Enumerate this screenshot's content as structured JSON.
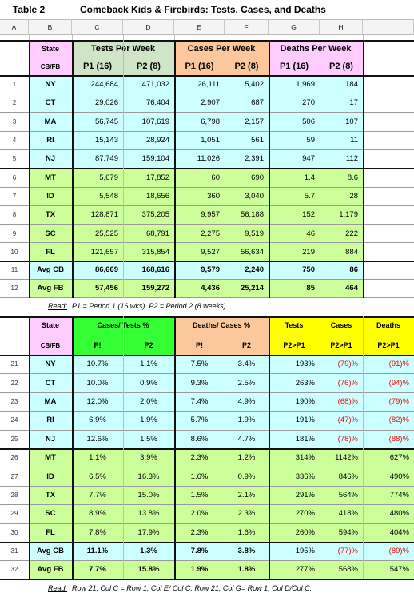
{
  "table_label": "Table 2",
  "table_title": "Comeback Kids & Firebirds: Tests, Cases, and Deaths",
  "column_letters": [
    "A",
    "B",
    "C",
    "D",
    "E",
    "F",
    "G",
    "H",
    "I"
  ],
  "upper": {
    "header": {
      "state": "State",
      "cbfb": "CB/FB",
      "groups": [
        "Tests Per Week",
        "Cases Per Week",
        "Deaths Per Week"
      ],
      "subs": [
        "P1  (16)",
        "P2  (8)",
        "P1  (16)",
        "P2  (8)",
        "P1  (16)",
        "P2  (8)"
      ]
    },
    "rows": [
      {
        "num": "1",
        "state": "NY",
        "v": [
          "244,684",
          "471,032",
          "26,111",
          "5,402",
          "1,969",
          "184"
        ]
      },
      {
        "num": "2",
        "state": "CT",
        "v": [
          "29,026",
          "76,404",
          "2,907",
          "687",
          "270",
          "17"
        ]
      },
      {
        "num": "3",
        "state": "MA",
        "v": [
          "56,745",
          "107,619",
          "6,798",
          "2,157",
          "506",
          "107"
        ]
      },
      {
        "num": "4",
        "state": "RI",
        "v": [
          "15,143",
          "28,924",
          "1,051",
          "561",
          "59",
          "11"
        ]
      },
      {
        "num": "5",
        "state": "NJ",
        "v": [
          "87,749",
          "159,104",
          "11,026",
          "2,391",
          "947",
          "112"
        ]
      },
      {
        "num": "6",
        "state": "MT",
        "v": [
          "5,679",
          "17,852",
          "60",
          "690",
          "1.4",
          "8.6"
        ]
      },
      {
        "num": "7",
        "state": "ID",
        "v": [
          "5,548",
          "18,656",
          "360",
          "3,040",
          "5.7",
          "28"
        ]
      },
      {
        "num": "8",
        "state": "TX",
        "v": [
          "128,871",
          "375,205",
          "9,957",
          "56,188",
          "152",
          "1,179"
        ]
      },
      {
        "num": "9",
        "state": "SC",
        "v": [
          "25,525",
          "68,791",
          "2,275",
          "9,519",
          "46",
          "222"
        ]
      },
      {
        "num": "10",
        "state": "FL",
        "v": [
          "121,657",
          "315,854",
          "9,527",
          "56,634",
          "219",
          "884"
        ]
      }
    ],
    "avg": [
      {
        "num": "11",
        "state": "Avg CB",
        "v": [
          "86,669",
          "168,616",
          "9,579",
          "2,240",
          "750",
          "86"
        ]
      },
      {
        "num": "12",
        "state": "Avg FB",
        "v": [
          "57,456",
          "159,272",
          "4,436",
          "25,214",
          "85",
          "464"
        ]
      }
    ],
    "note_label": "Read:",
    "note_text": "P1 = Period 1 (16 wks). P2 = Period 2 (8 weeks)."
  },
  "lower": {
    "header": {
      "state": "State",
      "cbfb": "CB/FB",
      "group1": "Cases/ Tests %",
      "group2": "Deaths/ Cases %",
      "tests": "Tests",
      "cases": "Cases",
      "deaths": "Deaths",
      "subs": [
        "P!",
        "P2",
        "P!",
        "P2",
        "P2>P1",
        "P2>P1",
        "P2>P1"
      ]
    },
    "rows": [
      {
        "num": "21",
        "state": "NY",
        "v": [
          "10.7%",
          "1.1%",
          "7.5%",
          "3.4%",
          "193%",
          "(79)%",
          "(91)%"
        ]
      },
      {
        "num": "22",
        "state": "CT",
        "v": [
          "10.0%",
          "0.9%",
          "9.3%",
          "2.5%",
          "263%",
          "(76)%",
          "(94)%"
        ]
      },
      {
        "num": "23",
        "state": "MA",
        "v": [
          "12.0%",
          "2.0%",
          "7.4%",
          "4.9%",
          "190%",
          "(68)%",
          "(79)%"
        ]
      },
      {
        "num": "24",
        "state": "RI",
        "v": [
          "6.9%",
          "1.9%",
          "5.7%",
          "1.9%",
          "191%",
          "(47)%",
          "(82)%"
        ]
      },
      {
        "num": "25",
        "state": "NJ",
        "v": [
          "12.6%",
          "1.5%",
          "8.6%",
          "4.7%",
          "181%",
          "(78)%",
          "(88)%"
        ]
      },
      {
        "num": "26",
        "state": "MT",
        "v": [
          "1.1%",
          "3.9%",
          "2.3%",
          "1.2%",
          "314%",
          "1142%",
          "627%"
        ]
      },
      {
        "num": "27",
        "state": "ID",
        "v": [
          "6.5%",
          "16.3%",
          "1.6%",
          "0.9%",
          "336%",
          "846%",
          "490%"
        ]
      },
      {
        "num": "28",
        "state": "TX",
        "v": [
          "7.7%",
          "15.0%",
          "1.5%",
          "2.1%",
          "291%",
          "564%",
          "774%"
        ]
      },
      {
        "num": "29",
        "state": "SC",
        "v": [
          "8.9%",
          "13.8%",
          "2.0%",
          "2.3%",
          "270%",
          "418%",
          "480%"
        ]
      },
      {
        "num": "30",
        "state": "FL",
        "v": [
          "7.8%",
          "17.9%",
          "2.3%",
          "1.6%",
          "260%",
          "594%",
          "404%"
        ]
      }
    ],
    "avg": [
      {
        "num": "31",
        "state": "Avg CB",
        "v": [
          "11.1%",
          "1.3%",
          "7.8%",
          "3.8%",
          "195%",
          "(77)%",
          "(89)%"
        ]
      },
      {
        "num": "32",
        "state": "Avg FB",
        "v": [
          "7.7%",
          "15.8%",
          "1.9%",
          "1.8%",
          "277%",
          "568%",
          "547%"
        ]
      }
    ],
    "note_label": "Read:",
    "note_text": "Row 21, Col C = Row 1, Col E/ Col C.  Row 21, Col G= Row 1, Col D/Col C."
  },
  "colors": {
    "cb_rows": "#ccffff",
    "fb_rows": "#ccff99",
    "state_header": "#ffccff",
    "tests_header": "#d0e4c8",
    "cases_header": "#fcc79a",
    "cases_tests_header": "#33ff33",
    "change_header": "#ffff00",
    "negative_text": "#e01010"
  }
}
